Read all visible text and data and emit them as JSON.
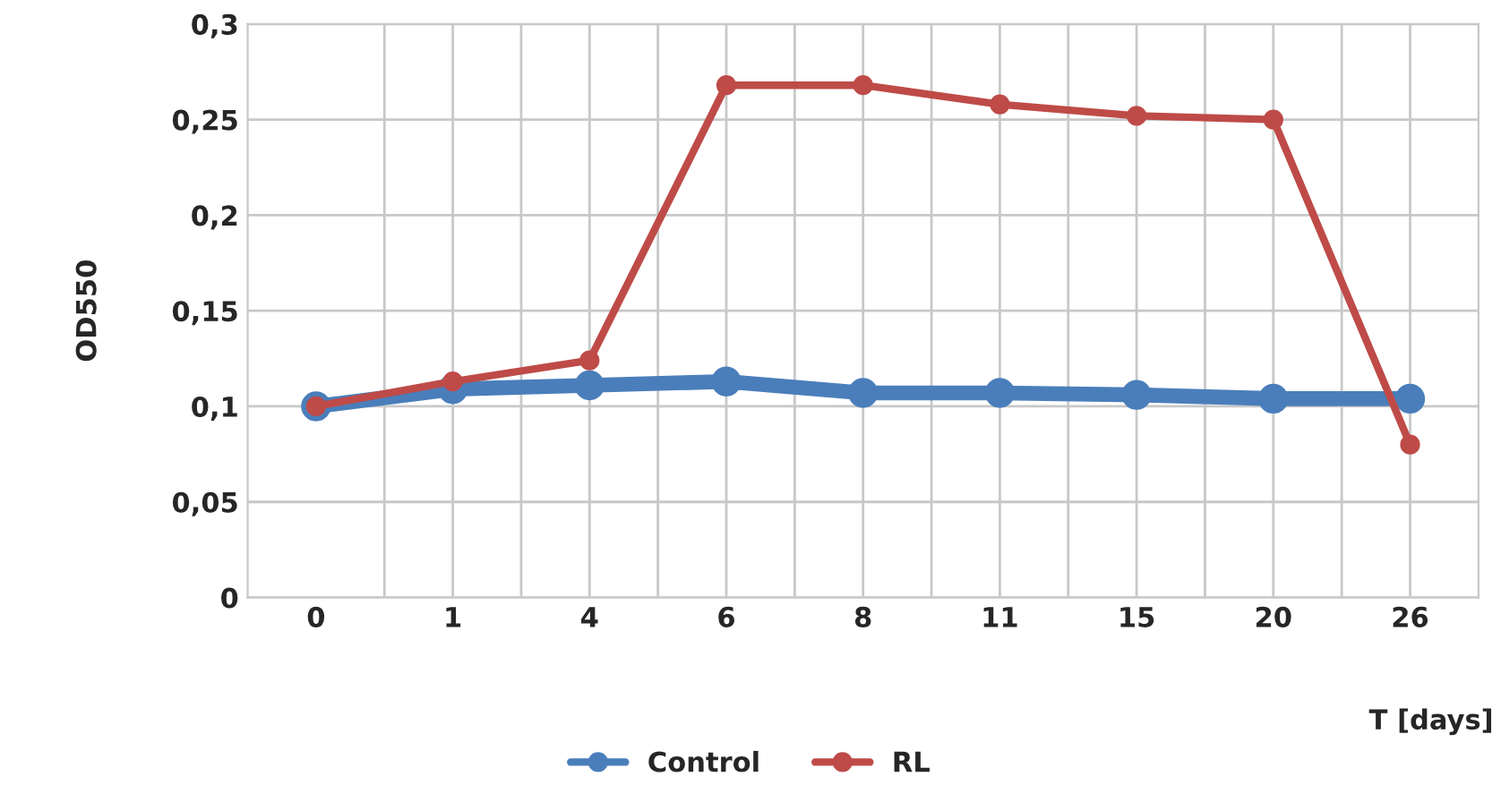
{
  "chart_data": {
    "type": "line",
    "xlabel": "T [days]",
    "ylabel": "OD550",
    "categories": [
      "0",
      "1",
      "4",
      "6",
      "8",
      "11",
      "15",
      "20",
      "26"
    ],
    "series": [
      {
        "name": "Control",
        "color": "#4a7ebb",
        "values": [
          0.1,
          0.109,
          0.111,
          0.113,
          0.107,
          0.107,
          0.106,
          0.104,
          0.104
        ]
      },
      {
        "name": "RL",
        "color": "#be4b48",
        "values": [
          0.1,
          0.113,
          0.124,
          0.268,
          0.268,
          0.258,
          0.252,
          0.25,
          0.08
        ]
      }
    ],
    "ylim": [
      0,
      0.3
    ],
    "yticks": [
      {
        "value": 0,
        "label": "0"
      },
      {
        "value": 0.05,
        "label": "0,05"
      },
      {
        "value": 0.1,
        "label": "0,1"
      },
      {
        "value": 0.15,
        "label": "0,15"
      },
      {
        "value": 0.2,
        "label": "0,2"
      },
      {
        "value": 0.25,
        "label": "0,25"
      },
      {
        "value": 0.3,
        "label": "0,3"
      }
    ],
    "grid": true,
    "legend": "bottom",
    "marker": "circle",
    "line_style": "solid"
  }
}
